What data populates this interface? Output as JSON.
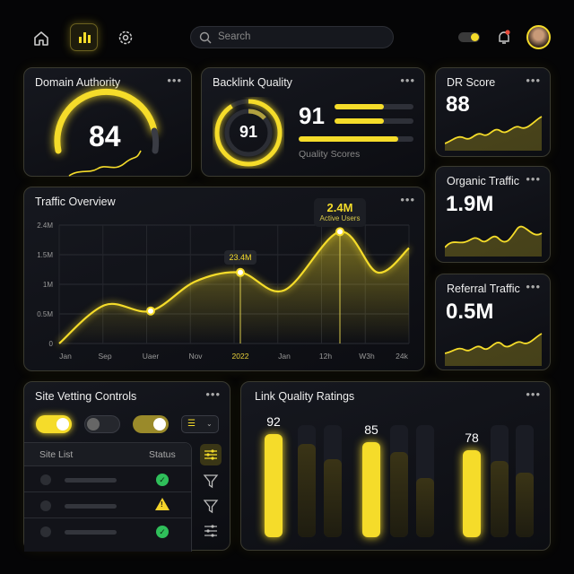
{
  "nav": {
    "icons": [
      "home-icon",
      "bar-chart-icon",
      "gear-icon"
    ],
    "search_placeholder": "Search",
    "active": "bar-chart-icon"
  },
  "colors": {
    "accent": "#f5dc2a",
    "success": "#2fbf5a",
    "warning": "#f5d42a",
    "bg": "#050506"
  },
  "domain_authority": {
    "title": "Domain Authority",
    "value": "84",
    "gauge_fraction": 0.78
  },
  "backlink_quality": {
    "title": "Backlink Quality",
    "ring_value": "91",
    "value": "91",
    "caption": "Quality Scores",
    "bars": [
      0.6,
      0.6,
      0.88
    ]
  },
  "dr_score": {
    "title": "DR Score",
    "value": "88"
  },
  "organic_traffic": {
    "title": "Organic Traffic",
    "value": "1.9M"
  },
  "referral_traffic": {
    "title": "Referral Traffic",
    "value": "0.5M"
  },
  "traffic_overview": {
    "title": "Traffic Overview",
    "callout_mid": "23.4M",
    "callout_peak_value": "2.4M",
    "callout_peak_label": "Active Users"
  },
  "chart_data": [
    {
      "type": "line",
      "title": "Traffic Overview",
      "y_ticks": [
        "0",
        "0.5M",
        "1M",
        "1.5M",
        "2.4M"
      ],
      "x_ticks": [
        "Jan",
        "Sep",
        "Uaer",
        "Nov",
        "2022",
        "Jan",
        "12h",
        "W3h",
        "24k"
      ],
      "highlight_x_tick": "2022",
      "x": [
        0,
        1,
        2,
        3,
        4,
        5,
        6,
        7,
        8
      ],
      "values": [
        0,
        0.65,
        0.55,
        1.05,
        1.2,
        0.9,
        2.2,
        1.2,
        1.7
      ],
      "points_marked": [
        2,
        4,
        6
      ],
      "grid": true
    },
    {
      "type": "bar",
      "title": "Link Quality Ratings",
      "ylim": [
        0,
        100
      ],
      "values": [
        92,
        83,
        70,
        85,
        76,
        53,
        78,
        68,
        58
      ],
      "labels": [
        "92",
        "",
        "",
        "85",
        "",
        "",
        "78",
        "",
        ""
      ],
      "highlighted": [
        0,
        3,
        6
      ]
    }
  ],
  "site_vetting": {
    "title": "Site Vetting Controls",
    "toggles": [
      true,
      false,
      true
    ],
    "col_site": "Site List",
    "col_status": "Status",
    "rows": [
      {
        "status": "check-icon"
      },
      {
        "status": "warning-icon"
      },
      {
        "status": "check-icon"
      }
    ]
  },
  "link_quality": {
    "title": "Link Quality Ratings"
  },
  "more": "•••"
}
